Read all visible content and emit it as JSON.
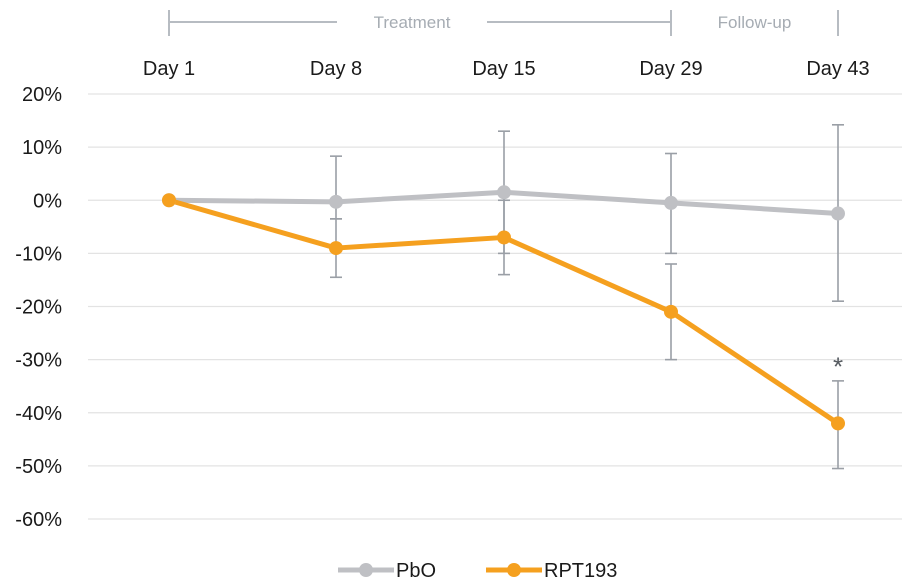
{
  "chart_data": {
    "type": "line",
    "title": "",
    "xlabel": "",
    "ylabel": "",
    "categories": [
      "Day 1",
      "Day 8",
      "Day 15",
      "Day 29",
      "Day 43"
    ],
    "y_ticks": [
      "20%",
      "10%",
      "0%",
      "-10%",
      "-20%",
      "-30%",
      "-40%",
      "-50%",
      "-60%"
    ],
    "ylim": [
      -60,
      20
    ],
    "y_unit": "%",
    "grid": "horizontal",
    "legend_position": "bottom",
    "phases": [
      {
        "label": "Treatment",
        "start": "Day 1",
        "end": "Day 29"
      },
      {
        "label": "Follow-up",
        "start": "Day 29",
        "end": "Day 43"
      }
    ],
    "series": [
      {
        "name": "PbO",
        "color": "#bfc0c4",
        "values": [
          0,
          -0.3,
          1.5,
          -0.5,
          -2.5
        ],
        "error_low": [
          0,
          -3.5,
          -10,
          -10,
          -19
        ],
        "error_high": [
          0,
          8.3,
          13,
          8.8,
          14.2
        ]
      },
      {
        "name": "RPT193",
        "color": "#f5a01f",
        "values": [
          0,
          -9,
          -7,
          -21,
          -42
        ],
        "error_low": [
          0,
          -14.5,
          -14,
          -30,
          -50.5
        ],
        "error_high": [
          0,
          -3.5,
          0,
          -12,
          -34
        ]
      }
    ],
    "annotations": [
      {
        "text": "*",
        "x": "Day 43",
        "y": -30
      }
    ],
    "error_bar_color": "#9a9fa6",
    "grid_color": "#e3e3e3"
  }
}
